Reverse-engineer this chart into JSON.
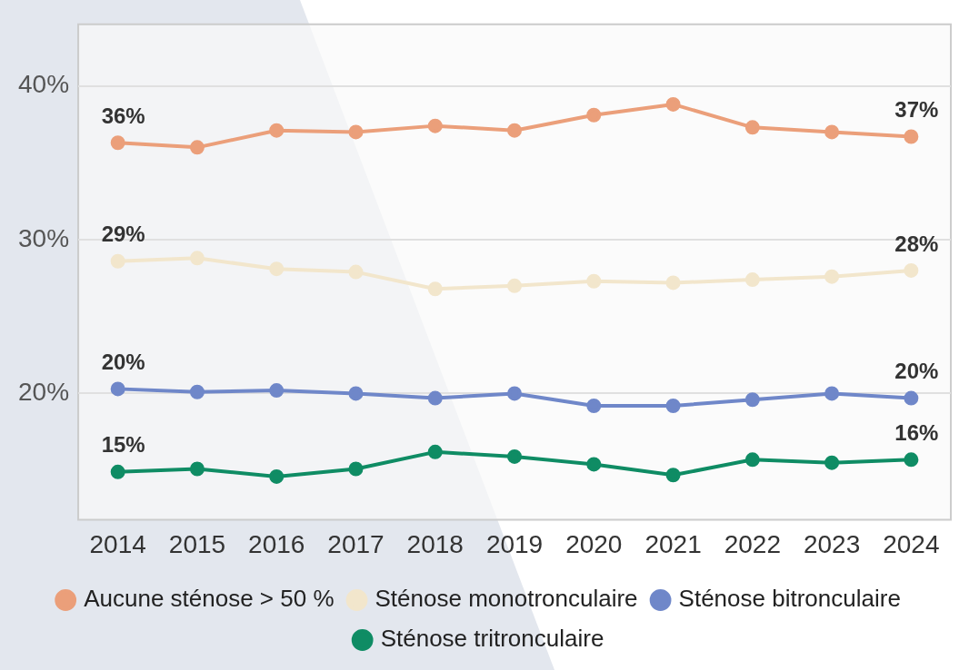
{
  "chart_data": {
    "type": "line",
    "categories": [
      "2014",
      "2015",
      "2016",
      "2017",
      "2018",
      "2019",
      "2020",
      "2021",
      "2022",
      "2023",
      "2024"
    ],
    "series": [
      {
        "name": "Aucune sténose > 50 %",
        "color": "#eb9f7a",
        "values": [
          36.3,
          36,
          37.1,
          37,
          37.4,
          37.1,
          38.1,
          38.8,
          37.3,
          37,
          36.7
        ],
        "value_labels": [
          "36%",
          null,
          null,
          null,
          null,
          null,
          null,
          null,
          null,
          null,
          "37%"
        ]
      },
      {
        "name": "Sténose monotronculaire",
        "color": "#f2e6cc",
        "values": [
          28.6,
          28.8,
          28.1,
          27.9,
          26.8,
          27,
          27.3,
          27.2,
          27.4,
          27.6,
          28
        ],
        "value_labels": [
          "29%",
          null,
          null,
          null,
          null,
          null,
          null,
          null,
          null,
          null,
          "28%"
        ]
      },
      {
        "name": "Sténose bitronculaire",
        "color": "#6f87c9",
        "values": [
          20.3,
          20.1,
          20.2,
          20,
          19.7,
          20,
          19.2,
          19.2,
          19.6,
          20,
          19.7
        ],
        "value_labels": [
          "20%",
          null,
          null,
          null,
          null,
          null,
          null,
          null,
          null,
          null,
          "20%"
        ]
      },
      {
        "name": "Sténose tritronculaire",
        "color": "#0f8c64",
        "values": [
          14.9,
          15.1,
          14.6,
          15.1,
          16.2,
          15.9,
          15.4,
          14.7,
          15.7,
          15.5,
          15.7
        ],
        "value_labels": [
          "15%",
          null,
          null,
          null,
          null,
          null,
          null,
          null,
          null,
          null,
          "16%"
        ]
      }
    ],
    "ylim": [
      11.8,
      44
    ],
    "yticks": [
      {
        "value": 20,
        "label": "20%"
      },
      {
        "value": 30,
        "label": "30%"
      },
      {
        "value": 40,
        "label": "40%"
      }
    ],
    "grid": "y",
    "legend": "bottom",
    "marker": "circle",
    "line_style": "solid"
  }
}
